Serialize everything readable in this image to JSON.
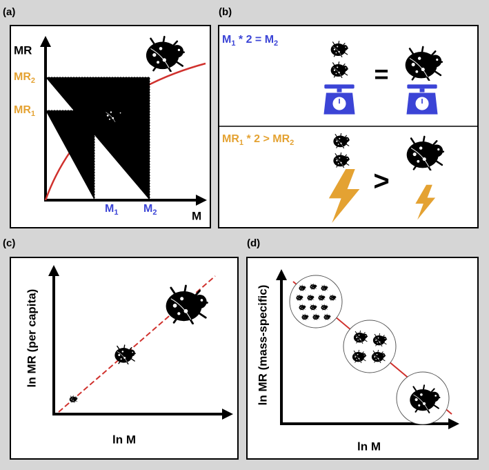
{
  "panels": {
    "a": {
      "label": "(a)",
      "y_axis": "MR",
      "x_axis": "M",
      "mr2": [
        {
          "text": "MR"
        },
        {
          "sub": "2"
        }
      ],
      "mr1": [
        {
          "text": "MR"
        },
        {
          "sub": "1"
        }
      ],
      "m1": [
        {
          "text": "M"
        },
        {
          "sub": "1"
        }
      ],
      "m2": [
        {
          "text": "M"
        },
        {
          "sub": "2"
        }
      ]
    },
    "b": {
      "label": "(b)",
      "mass_eq": [
        {
          "text": "M"
        },
        {
          "sub": "1"
        },
        {
          "text": " * 2 = M"
        },
        {
          "sub": "2"
        }
      ],
      "equals": "=",
      "rate_ineq": [
        {
          "text": "MR"
        },
        {
          "sub": "1"
        },
        {
          "text": " * 2 > MR"
        },
        {
          "sub": "2"
        }
      ],
      "greater": ">"
    },
    "c": {
      "label": "(c)",
      "y_axis": "ln MR (per capita)",
      "x_axis": "ln M"
    },
    "d": {
      "label": "(d)",
      "y_axis": "ln MR (mass-specific)",
      "x_axis": "ln M"
    }
  }
}
